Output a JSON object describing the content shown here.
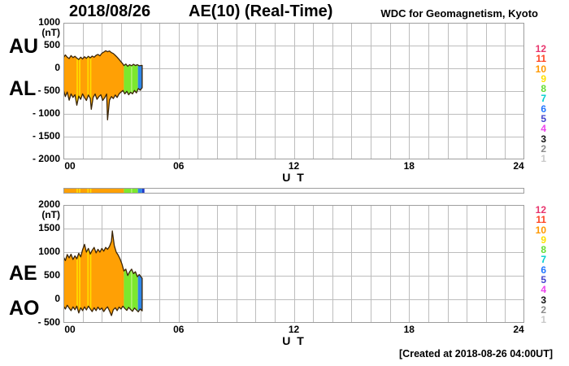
{
  "header": {
    "date": "2018/08/26",
    "title": "AE(10) (Real-Time)",
    "source": "WDC for Geomagnetism, Kyoto"
  },
  "footer": {
    "created": "[Created at 2018-08-26 04:00UT]"
  },
  "chart_data": {
    "type": "area",
    "xlabel": "U T",
    "xlim": [
      0,
      24
    ],
    "xticks": [
      {
        "hour": 0,
        "label": "00"
      },
      {
        "hour": 6,
        "label": "06"
      },
      {
        "hour": 12,
        "label": "12"
      },
      {
        "hour": 18,
        "label": "18"
      },
      {
        "hour": 24,
        "label": "24"
      }
    ],
    "grid_color": "#BDBDBD",
    "frame_color": "#9E9E9E",
    "outline_color": "#3A2508",
    "panels": [
      {
        "name": "AU-AL",
        "unit": "(nT)",
        "ylim": [
          -2000,
          1000
        ],
        "yticks": [
          {
            "value": 1000,
            "label": "1000"
          },
          {
            "value": 500,
            "label": "500"
          },
          {
            "value": 0,
            "label": "0"
          },
          {
            "value": -500,
            "label": "- 500"
          },
          {
            "value": -1000,
            "label": "- 1000"
          },
          {
            "value": -1500,
            "label": "- 1500"
          },
          {
            "value": -2000,
            "label": "- 2000"
          }
        ],
        "left_labels": [
          "AU",
          "AL"
        ],
        "upper": {
          "name": "AU",
          "points": [
            [
              0,
              230
            ],
            [
              0.1,
              295
            ],
            [
              0.2,
              245
            ],
            [
              0.3,
              215
            ],
            [
              0.4,
              280
            ],
            [
              0.5,
              235
            ],
            [
              0.6,
              265
            ],
            [
              0.7,
              225
            ],
            [
              0.8,
              195
            ],
            [
              0.9,
              245
            ],
            [
              1.0,
              205
            ],
            [
              1.1,
              255
            ],
            [
              1.2,
              220
            ],
            [
              1.3,
              265
            ],
            [
              1.4,
              230
            ],
            [
              1.5,
              270
            ],
            [
              1.6,
              245
            ],
            [
              1.7,
              285
            ],
            [
              1.8,
              305
            ],
            [
              1.9,
              275
            ],
            [
              2.0,
              330
            ],
            [
              2.1,
              355
            ],
            [
              2.2,
              385
            ],
            [
              2.3,
              365
            ],
            [
              2.4,
              380
            ],
            [
              2.5,
              345
            ],
            [
              2.6,
              325
            ],
            [
              2.7,
              285
            ],
            [
              2.8,
              245
            ],
            [
              2.9,
              195
            ],
            [
              3.0,
              145
            ],
            [
              3.1,
              95
            ],
            [
              3.15,
              60
            ],
            [
              3.25,
              95
            ],
            [
              3.35,
              45
            ],
            [
              3.45,
              80
            ],
            [
              3.55,
              55
            ],
            [
              3.65,
              90
            ],
            [
              3.75,
              60
            ],
            [
              3.85,
              80
            ],
            [
              3.95,
              55
            ],
            [
              4.1,
              65
            ]
          ]
        },
        "lower": {
          "name": "AL",
          "points": [
            [
              0,
              -470
            ],
            [
              0.1,
              -620
            ],
            [
              0.2,
              -520
            ],
            [
              0.3,
              -700
            ],
            [
              0.4,
              -560
            ],
            [
              0.5,
              -640
            ],
            [
              0.6,
              -580
            ],
            [
              0.7,
              -810
            ],
            [
              0.8,
              -610
            ],
            [
              0.9,
              -680
            ],
            [
              1.0,
              -560
            ],
            [
              1.1,
              -645
            ],
            [
              1.2,
              -705
            ],
            [
              1.3,
              -585
            ],
            [
              1.4,
              -660
            ],
            [
              1.45,
              -900
            ],
            [
              1.55,
              -640
            ],
            [
              1.65,
              -565
            ],
            [
              1.75,
              -680
            ],
            [
              1.85,
              -620
            ],
            [
              1.95,
              -580
            ],
            [
              2.05,
              -705
            ],
            [
              2.15,
              -645
            ],
            [
              2.25,
              -565
            ],
            [
              2.3,
              -1130
            ],
            [
              2.4,
              -700
            ],
            [
              2.5,
              -620
            ],
            [
              2.6,
              -665
            ],
            [
              2.7,
              -585
            ],
            [
              2.8,
              -640
            ],
            [
              2.9,
              -560
            ],
            [
              3.0,
              -520
            ],
            [
              3.1,
              -485
            ],
            [
              3.2,
              -560
            ],
            [
              3.3,
              -505
            ],
            [
              3.4,
              -580
            ],
            [
              3.5,
              -525
            ],
            [
              3.6,
              -560
            ],
            [
              3.7,
              -485
            ],
            [
              3.8,
              -540
            ],
            [
              3.9,
              -445
            ],
            [
              4.0,
              -480
            ],
            [
              4.1,
              -425
            ]
          ]
        },
        "segments": [
          {
            "from": 0,
            "to": 3.15,
            "color": "#FFA005"
          },
          {
            "from": 3.15,
            "to": 3.88,
            "color": "#7CE82E"
          },
          {
            "from": 3.88,
            "to": 4.1,
            "color": "#2E86E8"
          }
        ],
        "bars": [
          {
            "at": 0.72,
            "w": 0.07,
            "color": "#FFDD00"
          },
          {
            "at": 0.85,
            "w": 0.07,
            "color": "#FFDD00"
          },
          {
            "at": 1.28,
            "w": 0.07,
            "color": "#FFDD00"
          },
          {
            "at": 1.42,
            "w": 0.07,
            "color": "#FFDD00"
          },
          {
            "at": 3.55,
            "w": 0.07,
            "color": "#AEF06E"
          }
        ]
      },
      {
        "name": "AE-AO",
        "unit": "(nT)",
        "ylim": [
          -500,
          2000
        ],
        "yticks": [
          {
            "value": 2000,
            "label": "2000"
          },
          {
            "value": 1500,
            "label": "1500"
          },
          {
            "value": 1000,
            "label": "1000"
          },
          {
            "value": 500,
            "label": "500"
          },
          {
            "value": 0,
            "label": "0"
          },
          {
            "value": -500,
            "label": "- 500"
          }
        ],
        "left_labels": [
          "AE",
          "AO"
        ],
        "upper": {
          "name": "AE",
          "points": [
            [
              0,
              905
            ],
            [
              0.1,
              820
            ],
            [
              0.2,
              950
            ],
            [
              0.3,
              880
            ],
            [
              0.4,
              955
            ],
            [
              0.5,
              845
            ],
            [
              0.6,
              920
            ],
            [
              0.7,
              860
            ],
            [
              0.8,
              975
            ],
            [
              0.9,
              900
            ],
            [
              1.0,
              1050
            ],
            [
              1.1,
              1165
            ],
            [
              1.2,
              1000
            ],
            [
              1.3,
              1080
            ],
            [
              1.4,
              960
            ],
            [
              1.5,
              1040
            ],
            [
              1.6,
              1100
            ],
            [
              1.7,
              985
            ],
            [
              1.8,
              1060
            ],
            [
              1.9,
              1000
            ],
            [
              2.0,
              1080
            ],
            [
              2.1,
              1020
            ],
            [
              2.2,
              1100
            ],
            [
              2.3,
              1060
            ],
            [
              2.4,
              1120
            ],
            [
              2.5,
              1230
            ],
            [
              2.55,
              1450
            ],
            [
              2.65,
              1140
            ],
            [
              2.75,
              1000
            ],
            [
              2.85,
              940
            ],
            [
              2.95,
              855
            ],
            [
              3.05,
              745
            ],
            [
              3.15,
              600
            ],
            [
              3.25,
              640
            ],
            [
              3.35,
              505
            ],
            [
              3.45,
              585
            ],
            [
              3.55,
              640
            ],
            [
              3.65,
              545
            ],
            [
              3.75,
              585
            ],
            [
              3.85,
              480
            ],
            [
              3.95,
              525
            ],
            [
              4.1,
              445
            ]
          ]
        },
        "lower": {
          "name": "AO",
          "points": [
            [
              0,
              -140
            ],
            [
              0.1,
              -205
            ],
            [
              0.2,
              -125
            ],
            [
              0.3,
              -185
            ],
            [
              0.4,
              -240
            ],
            [
              0.5,
              -160
            ],
            [
              0.6,
              -220
            ],
            [
              0.7,
              -145
            ],
            [
              0.8,
              -290
            ],
            [
              0.9,
              -180
            ],
            [
              1.0,
              -240
            ],
            [
              1.1,
              -160
            ],
            [
              1.2,
              -225
            ],
            [
              1.3,
              -145
            ],
            [
              1.4,
              -205
            ],
            [
              1.5,
              -260
            ],
            [
              1.6,
              -180
            ],
            [
              1.7,
              -240
            ],
            [
              1.8,
              -165
            ],
            [
              1.9,
              -220
            ],
            [
              2.0,
              -185
            ],
            [
              2.1,
              -260
            ],
            [
              2.2,
              -200
            ],
            [
              2.3,
              -160
            ],
            [
              2.4,
              -245
            ],
            [
              2.5,
              -345
            ],
            [
              2.6,
              -220
            ],
            [
              2.7,
              -180
            ],
            [
              2.8,
              -240
            ],
            [
              2.9,
              -165
            ],
            [
              3.0,
              -205
            ],
            [
              3.1,
              -145
            ],
            [
              3.2,
              -195
            ],
            [
              3.3,
              -235
            ],
            [
              3.4,
              -170
            ],
            [
              3.5,
              -215
            ],
            [
              3.6,
              -255
            ],
            [
              3.7,
              -185
            ],
            [
              3.8,
              -225
            ],
            [
              3.9,
              -265
            ],
            [
              4.0,
              -205
            ],
            [
              4.1,
              -245
            ]
          ]
        },
        "segments": [
          {
            "from": 0,
            "to": 3.15,
            "color": "#FFA005"
          },
          {
            "from": 3.15,
            "to": 3.88,
            "color": "#7CE82E"
          },
          {
            "from": 3.88,
            "to": 4.1,
            "color": "#2E86E8"
          }
        ],
        "bars": [
          {
            "at": 0.72,
            "w": 0.07,
            "color": "#FFDD00"
          },
          {
            "at": 0.85,
            "w": 0.07,
            "color": "#FFDD00"
          },
          {
            "at": 1.28,
            "w": 0.07,
            "color": "#FFDD00"
          },
          {
            "at": 1.42,
            "w": 0.07,
            "color": "#FFDD00"
          },
          {
            "at": 3.55,
            "w": 0.07,
            "color": "#AEF06E"
          }
        ]
      }
    ],
    "strip": {
      "segments": [
        {
          "from": 0,
          "to": 3.15,
          "color": "#FFA005"
        },
        {
          "from": 3.15,
          "to": 3.88,
          "color": "#7CE82E"
        },
        {
          "from": 3.88,
          "to": 4.1,
          "color": "#2E86E8"
        },
        {
          "from": 4.1,
          "to": 4.22,
          "color": "#2238C8"
        }
      ],
      "bars": [
        {
          "at": 0.72,
          "w": 0.07,
          "color": "#FFDD00"
        },
        {
          "at": 0.85,
          "w": 0.07,
          "color": "#FFDD00"
        },
        {
          "at": 1.28,
          "w": 0.07,
          "color": "#FFDD00"
        },
        {
          "at": 1.42,
          "w": 0.07,
          "color": "#FFDD00"
        },
        {
          "at": 3.55,
          "w": 0.07,
          "color": "#AEF06E"
        }
      ]
    },
    "legend": {
      "items": [
        {
          "label": "12",
          "color": "#E8356D"
        },
        {
          "label": "11",
          "color": "#FF4422"
        },
        {
          "label": "10",
          "color": "#FF9900"
        },
        {
          "label": "9",
          "color": "#FFE000"
        },
        {
          "label": "8",
          "color": "#66DD33"
        },
        {
          "label": "7",
          "color": "#00CFCF"
        },
        {
          "label": "6",
          "color": "#2277FF"
        },
        {
          "label": "5",
          "color": "#4545CC"
        },
        {
          "label": "4",
          "color": "#EE44EE"
        },
        {
          "label": "3",
          "color": "#111111"
        },
        {
          "label": "2",
          "color": "#8C8C8C"
        },
        {
          "label": "1",
          "color": "#C9C9C9"
        }
      ]
    }
  }
}
